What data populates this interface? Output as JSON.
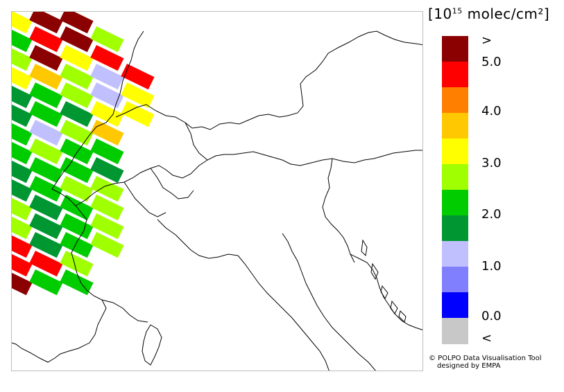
{
  "legend": {
    "unit_prefix": "[10",
    "unit_exp": "15",
    "unit_suffix": " molec/cm²]",
    "colors": [
      "#8b0000",
      "#ff0000",
      "#ff8000",
      "#ffc800",
      "#ffff00",
      "#a0ff00",
      "#00cc00",
      "#009632",
      "#c0c0ff",
      "#8080ff",
      "#0000ff",
      "#c8c8c8"
    ],
    "tick_labels": [
      ">",
      "5.0",
      "4.0",
      "3.0",
      "2.0",
      "1.0",
      "0.0",
      "<"
    ]
  },
  "credit": {
    "line1": "© POLPO Data Visualisation Tool",
    "line2": "designed by EMPA"
  },
  "swath": {
    "rows": [
      [
        4,
        0,
        0
      ],
      [
        6,
        1,
        0,
        5
      ],
      [
        5,
        0,
        4,
        1
      ],
      [
        4,
        3,
        5,
        8,
        1
      ],
      [
        7,
        6,
        5,
        8,
        4
      ],
      [
        7,
        6,
        7,
        4,
        4
      ],
      [
        6,
        8,
        5,
        3
      ],
      [
        6,
        5,
        6,
        6
      ],
      [
        7,
        6,
        6,
        7
      ],
      [
        7,
        6,
        5,
        5
      ],
      [
        5,
        7,
        6,
        5
      ],
      [
        5,
        7,
        6,
        5
      ],
      [
        1,
        7,
        6,
        5
      ],
      [
        1,
        1,
        5
      ],
      [
        0,
        6,
        6
      ]
    ]
  }
}
